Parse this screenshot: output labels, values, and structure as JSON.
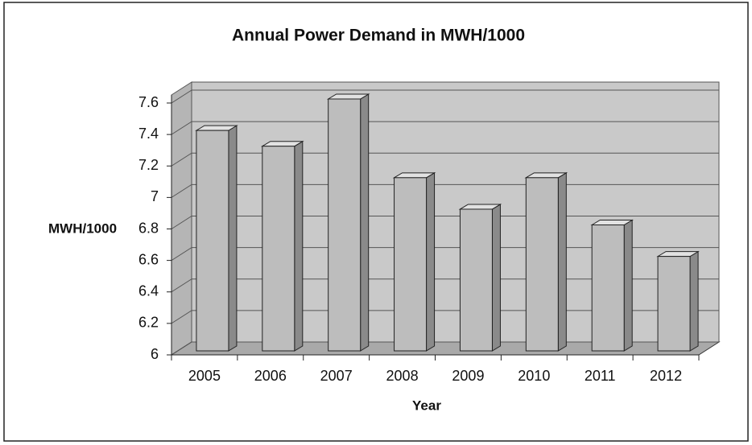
{
  "chart_data": {
    "type": "bar",
    "title": "Annual Power Demand in MWH/1000",
    "categories": [
      "2005",
      "2006",
      "2007",
      "2008",
      "2009",
      "2010",
      "2011",
      "2012"
    ],
    "values": [
      7.4,
      7.3,
      7.6,
      7.1,
      6.9,
      7.1,
      6.8,
      6.6
    ],
    "color": "#bdbdbd",
    "ylim": [
      6,
      7.6
    ],
    "yticks": [
      6,
      6.2,
      6.4,
      6.6,
      6.8,
      7,
      7.2,
      7.4,
      7.6
    ],
    "grid": true,
    "y_label": "MWH/1000",
    "x_label": "Year"
  }
}
